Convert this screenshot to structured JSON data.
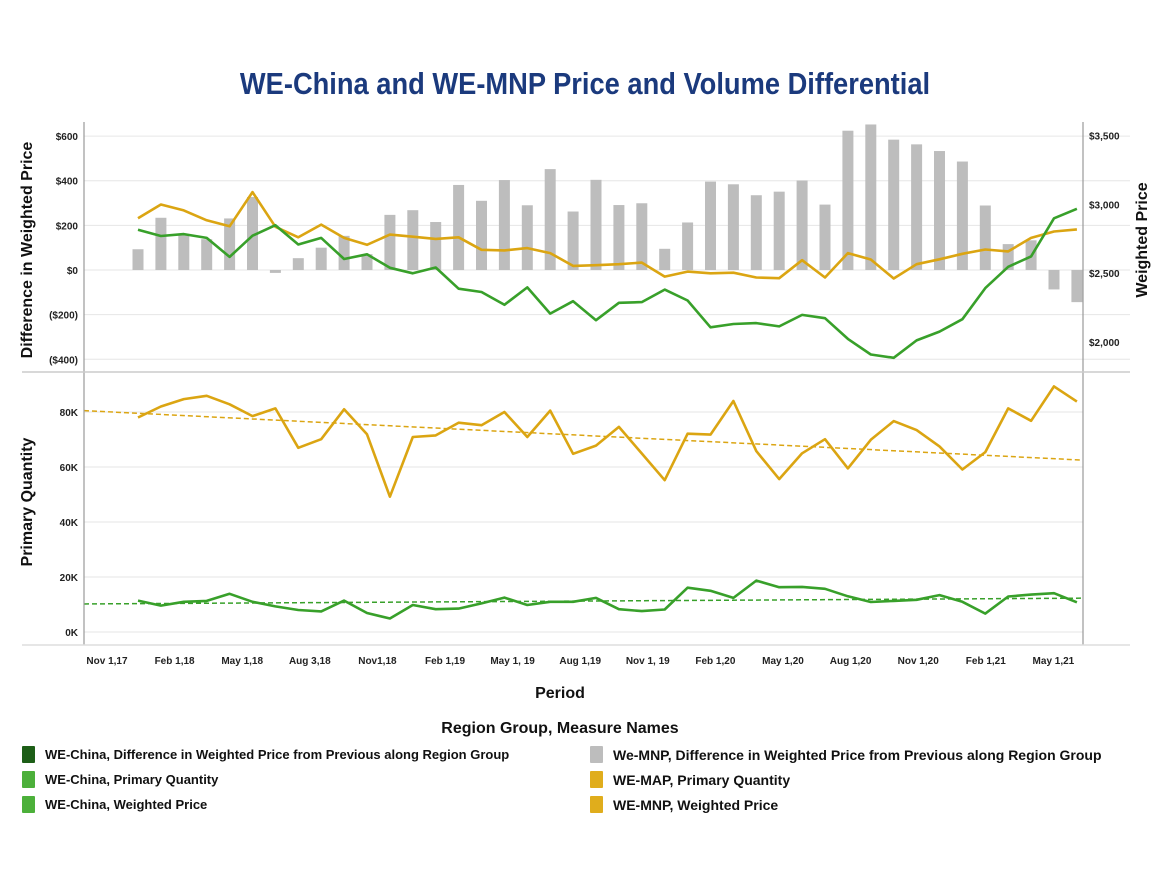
{
  "chart_data": [
    {
      "type": "bar+line",
      "title": "WE-China and WE-MNP Price and Volume Differential",
      "ylabel_left": "Difference in Weighted Price",
      "ylabel_right": "Weighted Price",
      "yticks_left": [
        "$600",
        "$400",
        "$200",
        "$0",
        "($200)",
        "($400)"
      ],
      "yticks_right": [
        "$3,500",
        "$3,000",
        "$2,500",
        "$2,000"
      ],
      "ylim_left": [
        -500,
        650
      ],
      "ylim_right": [
        1850,
        3650
      ],
      "grid": true,
      "series": [
        {
          "name": "We-MNP, Difference in Weighted Price from Previous along Region Group",
          "kind": "bar",
          "axis": "left",
          "color": "#bdbdbd",
          "values": [
            93,
            234,
            160,
            138,
            231,
            327,
            -13,
            53,
            100,
            153,
            71,
            247,
            268,
            215,
            381,
            310,
            403,
            290,
            452,
            262,
            404,
            291,
            299,
            95,
            213,
            396,
            384,
            335,
            351,
            401,
            293,
            624,
            652,
            584,
            563,
            533,
            486,
            289,
            116,
            133,
            -87,
            -144
          ]
        },
        {
          "name": "WE-MNP, Weighted Price",
          "kind": "line",
          "axis": "right",
          "color": "#dba512",
          "values": [
            2898,
            2998,
            2955,
            2883,
            2840,
            3088,
            2836,
            2760,
            2852,
            2755,
            2705,
            2779,
            2764,
            2748,
            2760,
            2669,
            2664,
            2681,
            2645,
            2552,
            2557,
            2564,
            2576,
            2474,
            2510,
            2498,
            2502,
            2467,
            2462,
            2593,
            2467,
            2645,
            2598,
            2460,
            2564,
            2600,
            2640,
            2671,
            2657,
            2755,
            2802,
            2817
          ]
        },
        {
          "name": "WE-China, Weighted Price",
          "kind": "line",
          "axis": "right",
          "color": "#38a02a",
          "values": [
            2814,
            2769,
            2783,
            2755,
            2617,
            2771,
            2848,
            2707,
            2755,
            2602,
            2636,
            2538,
            2498,
            2540,
            2386,
            2362,
            2269,
            2395,
            2205,
            2295,
            2157,
            2283,
            2288,
            2379,
            2300,
            2105,
            2129,
            2136,
            2112,
            2195,
            2171,
            2021,
            1907,
            1883,
            2010,
            2074,
            2164,
            2390,
            2545,
            2621,
            2898,
            2967
          ]
        }
      ]
    },
    {
      "type": "line",
      "ylabel": "Primary Quantity",
      "yticks": [
        "80K",
        "60K",
        "40K",
        "20K",
        "0K"
      ],
      "ylim": [
        -4000,
        96000
      ],
      "grid": true,
      "series": [
        {
          "name": "WE-MAP, Primary Quantity",
          "color": "#dba512",
          "values": [
            78000,
            82000,
            84700,
            85900,
            82800,
            78500,
            81300,
            67000,
            70100,
            81000,
            71900,
            49200,
            70900,
            71500,
            76100,
            75200,
            80000,
            70900,
            80500,
            64800,
            67800,
            74600,
            64900,
            55200,
            72100,
            71800,
            84000,
            65800,
            55600,
            65000,
            70100,
            59500,
            69900,
            76700,
            73400,
            67500,
            59100,
            65400,
            81300,
            76800,
            89300,
            83800
          ],
          "trend": [
            80500,
            62500
          ]
        },
        {
          "name": "WE-China, Primary Quantity",
          "color": "#38a02a",
          "values": [
            11400,
            9600,
            11000,
            11300,
            13900,
            11000,
            9300,
            8000,
            7500,
            11400,
            6900,
            4900,
            9800,
            8300,
            8500,
            10400,
            12500,
            9800,
            11000,
            11000,
            12400,
            8300,
            7600,
            8200,
            16100,
            15000,
            12400,
            18700,
            16300,
            16400,
            15700,
            13000,
            10900,
            11300,
            11700,
            13400,
            11000,
            6700,
            12900,
            13600,
            14100,
            10800
          ],
          "trend": [
            10200,
            12300
          ]
        }
      ]
    }
  ],
  "x_axis": {
    "label": "Period",
    "ticks": [
      "Nov 1,17",
      "Feb 1,18",
      "May 1,18",
      "Aug 3,18",
      "Nov1,18",
      "Feb 1,19",
      "May 1, 19",
      "Aug 1,19",
      "Nov 1, 19",
      "Feb 1,20",
      "May 1,20",
      "Aug 1,20",
      "Nov 1,20",
      "Feb 1,21",
      "May 1,21"
    ]
  },
  "legend": {
    "title": "Region Group, Measure Names",
    "placement": "bottom",
    "items": [
      {
        "label": "WE-China, Difference in Weighted Price from Previous along Region Group",
        "color": "#1d5e17"
      },
      {
        "label": "WE-China, Primary Quantity",
        "color": "#4cb03a"
      },
      {
        "label": "WE-China, Weighted Price",
        "color": "#4cb03a"
      },
      {
        "label": "We-MNP, Difference in Weighted Price from Previous along Region Group",
        "color": "#bdbdbd"
      },
      {
        "label": "WE-MAP, Primary Quantity",
        "color": "#e0ad1c"
      },
      {
        "label": "WE-MNP, Weighted Price",
        "color": "#e0ad1c"
      }
    ]
  }
}
